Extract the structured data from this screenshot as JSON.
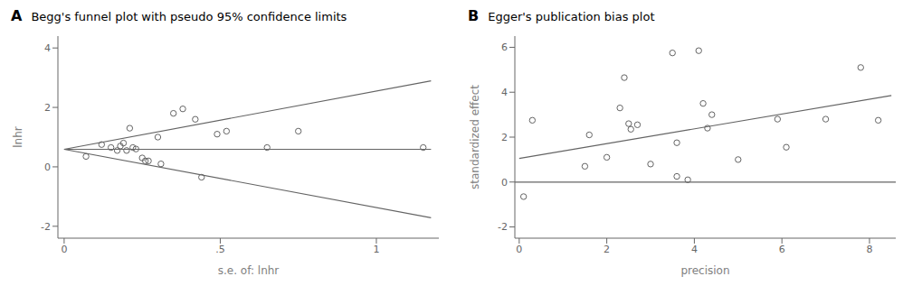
{
  "chart_data": [
    {
      "type": "scatter",
      "title": "Begg's funnel plot with pseudo 95% confidence limits",
      "x_label": "s.e. of: lnhr",
      "y_label": "lnhr",
      "annotations": [
        "A"
      ],
      "xlim": [
        -0.02,
        1.2
      ],
      "ylim": [
        -2.4,
        4.4
      ],
      "xticks": [
        0,
        {
          "value": 0.5,
          "label": ".5"
        },
        1
      ],
      "yticks": [
        -2,
        0,
        2,
        4
      ],
      "series": [
        {
          "type": "line",
          "color": "#646464",
          "line_style": "solid",
          "x": [
            0,
            1.175
          ],
          "values": [
            0.59,
            2.893
          ]
        },
        {
          "type": "line",
          "color": "#646464",
          "line_style": "solid",
          "x": [
            0,
            1.175
          ],
          "values": [
            0.59,
            -1.713
          ]
        },
        {
          "type": "line",
          "color": "#646464",
          "line_style": "solid",
          "x": [
            0,
            1.175
          ],
          "values": [
            0.59,
            0.59
          ]
        },
        {
          "type": "scatter",
          "color": "#646464",
          "marker": "open_circle",
          "x": [
            0.07,
            0.12,
            0.15,
            0.17,
            0.18,
            0.19,
            0.2,
            0.21,
            0.22,
            0.23,
            0.25,
            0.26,
            0.27,
            0.3,
            0.31,
            0.35,
            0.38,
            0.42,
            0.44,
            0.49,
            0.52,
            0.65,
            0.75,
            1.15
          ],
          "values": [
            0.35,
            0.75,
            0.65,
            0.55,
            0.7,
            0.8,
            0.55,
            1.3,
            0.65,
            0.6,
            0.3,
            0.2,
            0.2,
            1.0,
            0.1,
            1.8,
            1.95,
            1.6,
            -0.35,
            1.1,
            1.2,
            0.65,
            1.2,
            0.65
          ]
        }
      ]
    },
    {
      "type": "scatter",
      "title": "Egger's publication bias plot",
      "x_label": "precision",
      "y_label": "standardized effect",
      "annotations": [
        "B"
      ],
      "xlim": [
        -0.1,
        8.6
      ],
      "ylim": [
        -2.5,
        6.5
      ],
      "xticks": [
        0,
        2,
        4,
        6,
        8
      ],
      "yticks": [
        -2,
        0,
        2,
        4,
        6
      ],
      "series": [
        {
          "type": "line",
          "color": "#646464",
          "line_style": "solid",
          "x": [
            0,
            8.5
          ],
          "values": [
            1.05,
            3.85
          ]
        },
        {
          "type": "line",
          "color": "#646464",
          "line_style": "solid",
          "x": [
            -0.1,
            8.6
          ],
          "values": [
            0.0,
            0.0
          ]
        },
        {
          "type": "scatter",
          "color": "#646464",
          "marker": "open_circle",
          "x": [
            0.1,
            0.3,
            1.5,
            1.6,
            2.0,
            2.3,
            2.4,
            2.5,
            2.55,
            2.7,
            3.0,
            3.5,
            3.6,
            3.6,
            3.85,
            4.1,
            4.2,
            4.3,
            4.4,
            5.0,
            5.9,
            6.1,
            7.0,
            7.8,
            8.2
          ],
          "values": [
            -0.65,
            2.75,
            0.7,
            2.1,
            1.1,
            3.3,
            4.65,
            2.6,
            2.35,
            2.55,
            0.8,
            5.75,
            0.25,
            1.75,
            0.1,
            5.85,
            3.5,
            2.4,
            3.0,
            1.0,
            2.8,
            1.55,
            2.8,
            5.1,
            2.75
          ]
        }
      ]
    }
  ]
}
